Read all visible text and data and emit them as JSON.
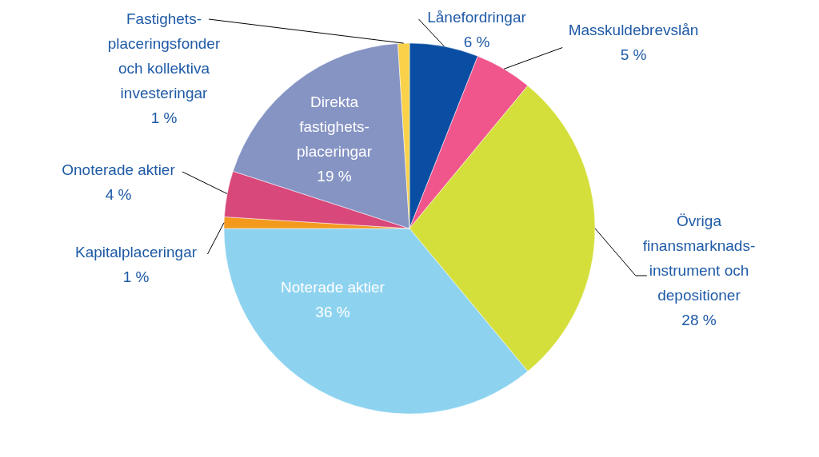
{
  "chart_data": {
    "type": "pie",
    "categories": [
      "Lånefordringar",
      "Masskuldebrevslån",
      "Övriga\nfinansmarknads-\ninstrument och\ndepositioner",
      "Noterade aktier",
      "Kapitalplaceringar",
      "Onoterade aktier",
      "Direkta\nfastighets-\nplaceringar",
      "Fastighets-\nplaceringsfonder\noch kollektiva\ninvesteringar"
    ],
    "values": [
      6,
      5,
      28,
      36,
      1,
      4,
      19,
      1
    ],
    "value_labels": [
      "6 %",
      "5 %",
      "28 %",
      "36 %",
      "1 %",
      "4 %",
      "19 %",
      "1 %"
    ],
    "colors": [
      "#0a4ea3",
      "#f0568c",
      "#d5df3c",
      "#8dd3f0",
      "#f39a1e",
      "#d9487a",
      "#8694c4",
      "#f9d24a"
    ]
  }
}
